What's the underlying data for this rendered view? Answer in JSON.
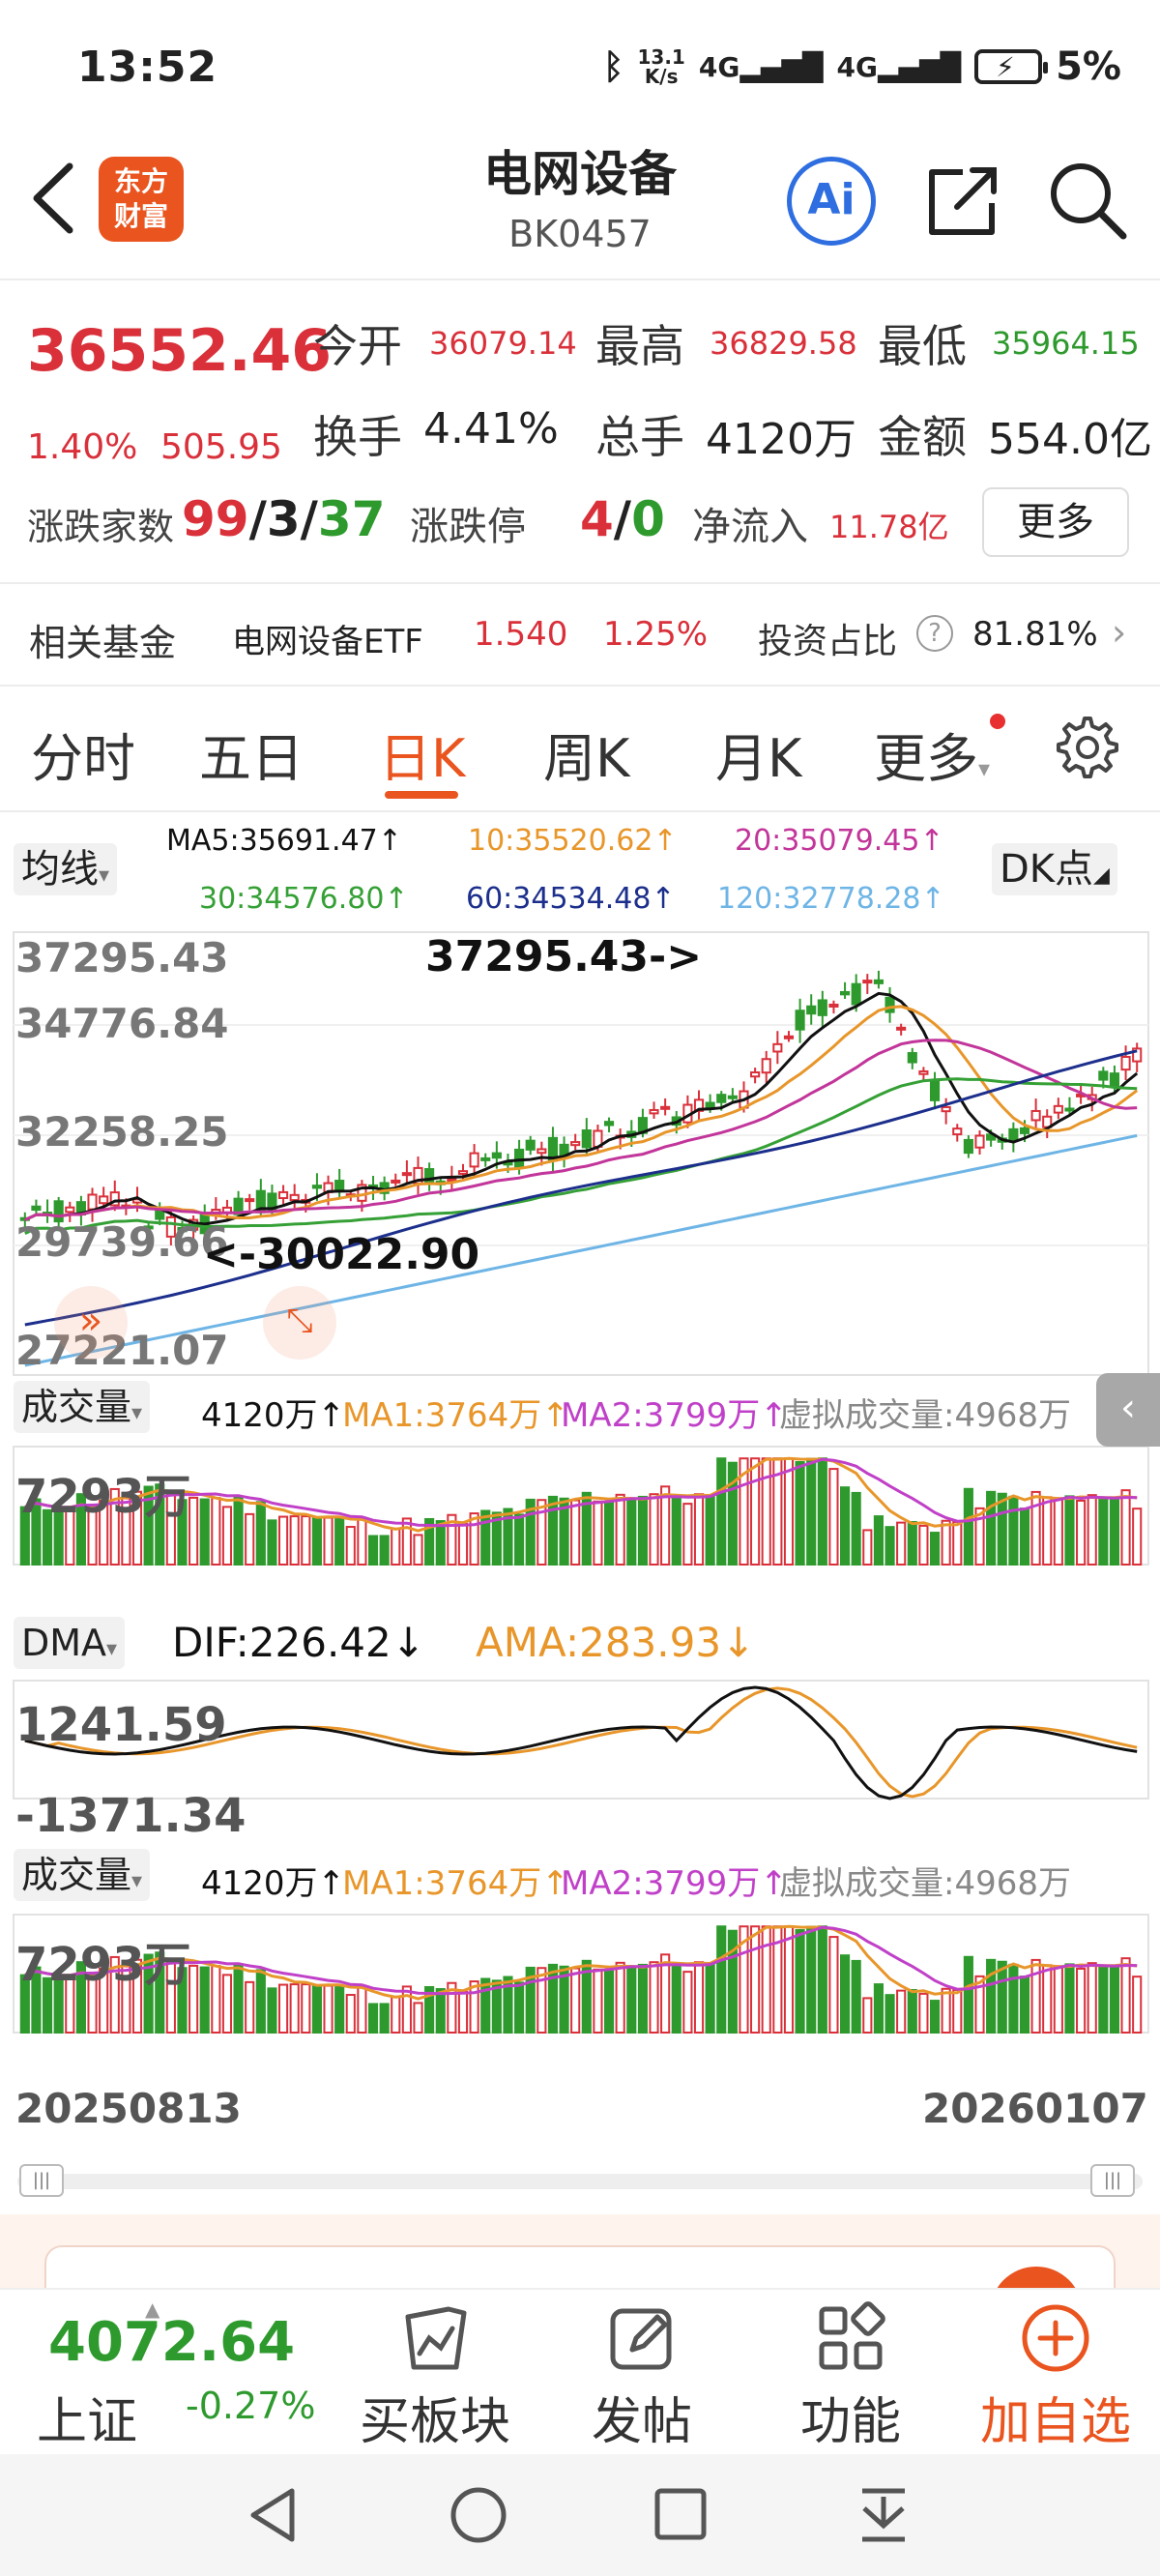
{
  "status_bar": {
    "time": "13:52",
    "net_speed_top": "13.1",
    "net_speed_bottom": "K/s",
    "signal1": "4G",
    "signal2": "4G",
    "battery": "5%"
  },
  "header": {
    "logo_line1": "东方",
    "logo_line2": "财富",
    "title": "电网设备",
    "code": "BK0457",
    "ai_label": "Ai"
  },
  "quote": {
    "price": "36552.46",
    "change_pct": "1.40%",
    "change_val": "505.95",
    "open_label": "今开",
    "open": "36079.14",
    "high_label": "最高",
    "high": "36829.58",
    "low_label": "最低",
    "low": "35964.15",
    "turnover_label": "换手",
    "turnover": "4.41%",
    "volume_label": "总手",
    "volume": "4120万",
    "amount_label": "金额",
    "amount": "554.0亿",
    "updown_label": "涨跌家数",
    "up": "99",
    "flat": "3",
    "down": "37",
    "limit_label": "涨跌停",
    "limit_up": "4",
    "limit_down": "0",
    "inflow_label": "净流入",
    "inflow": "11.78亿",
    "more": "更多",
    "sep": "/"
  },
  "fund": {
    "label": "相关基金",
    "name": "电网设备ETF",
    "price": "1.540",
    "change": "1.25%",
    "ratio_label": "投资占比",
    "ratio_help": "?",
    "ratio": "81.81%"
  },
  "tabs": [
    "分时",
    "五日",
    "日K",
    "周K",
    "月K",
    "更多"
  ],
  "ma": {
    "selector": "均线",
    "ma5": "MA5:35691.47↑",
    "ma10": "10:35520.62↑",
    "ma20": "20:35079.45↑",
    "ma30": "30:34576.80↑",
    "ma60": "60:34534.48↑",
    "ma120": "120:32778.28↑",
    "dk": "DK点"
  },
  "kline": {
    "y_labels": [
      "37295.43",
      "34776.84",
      "32258.25",
      "29739.66",
      "27221.07"
    ],
    "high_mark": "37295.43->",
    "low_mark": "<-30022.90"
  },
  "volume1": {
    "selector": "成交量",
    "vol": "4120万↑",
    "ma1": "MA1:3764万↑",
    "ma2": "MA2:3799万↑",
    "virtual": "虚拟成交量:4968万",
    "y_label": "7293万"
  },
  "dma": {
    "selector": "DMA",
    "dif": "DIF:226.42↓",
    "ama": "AMA:283.93↓",
    "y_top": "1241.59",
    "y_bottom": "-1371.34"
  },
  "volume2": {
    "selector": "成交量",
    "vol": "4120万↑",
    "ma1": "MA1:3764万↑",
    "ma2": "MA2:3799万↑",
    "virtual": "虚拟成交量:4968万",
    "y_label": "7293万"
  },
  "dates": {
    "start": "20250813",
    "end": "20260107"
  },
  "toolbar": {
    "index_value": "4072.64",
    "index_name": "上证",
    "index_change": "-0.27%",
    "buy_block": "买板块",
    "post": "发帖",
    "function": "功能",
    "add_watch": "加自选"
  },
  "colors": {
    "up": "#d9303a",
    "down": "#2e9a2e",
    "accent": "#e9541f",
    "ma5": "#111111",
    "ma10": "#e8962a",
    "ma20": "#c2359a",
    "ma30": "#35a035",
    "ma60": "#1c2f8c",
    "ma120": "#6eb5e6"
  }
}
